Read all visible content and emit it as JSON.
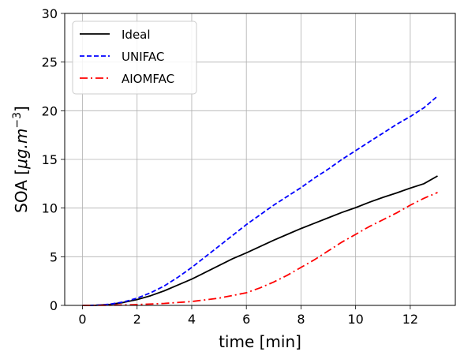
{
  "chart_data": {
    "type": "line",
    "xlabel": "time [min]",
    "ylabel": "SOA [μg.m⁻³]",
    "ylabel_parts": {
      "prefix": "SOA [",
      "unit": "μg.m",
      "exp": "−3",
      "suffix": "]"
    },
    "xlim": [
      -0.65,
      13.65
    ],
    "ylim": [
      0,
      30
    ],
    "xticks": [
      0,
      2,
      4,
      6,
      8,
      10,
      12
    ],
    "yticks": [
      0,
      5,
      10,
      15,
      20,
      25,
      30
    ],
    "grid": true,
    "legend_position": "top-left",
    "series": [
      {
        "name": "Ideal",
        "color": "#000000",
        "style": "solid",
        "x": [
          0,
          0.5,
          1,
          1.5,
          2,
          2.5,
          3,
          3.5,
          4,
          4.5,
          5,
          5.5,
          6,
          6.5,
          7,
          7.5,
          8,
          8.5,
          9,
          9.5,
          10,
          10.5,
          11,
          11.5,
          12,
          12.5,
          13
        ],
        "y": [
          0,
          0.02,
          0.1,
          0.3,
          0.6,
          1.0,
          1.5,
          2.1,
          2.7,
          3.4,
          4.1,
          4.8,
          5.4,
          6.05,
          6.7,
          7.3,
          7.9,
          8.45,
          9.0,
          9.55,
          10.05,
          10.6,
          11.1,
          11.55,
          12.05,
          12.5,
          13.3
        ]
      },
      {
        "name": "UNIFAC",
        "color": "#0000ff",
        "style": "dashed",
        "x": [
          0,
          0.5,
          1,
          1.5,
          2,
          2.5,
          3,
          3.5,
          4,
          4.5,
          5,
          5.5,
          6,
          6.5,
          7,
          7.5,
          8,
          8.5,
          9,
          9.5,
          10,
          10.5,
          11,
          11.5,
          12,
          12.5,
          13
        ],
        "y": [
          0,
          0.02,
          0.12,
          0.35,
          0.75,
          1.3,
          2.0,
          2.9,
          3.9,
          5.0,
          6.1,
          7.2,
          8.3,
          9.3,
          10.3,
          11.2,
          12.1,
          13.1,
          14.0,
          15.0,
          15.9,
          16.8,
          17.7,
          18.6,
          19.4,
          20.3,
          21.5
        ]
      },
      {
        "name": "AIOMFAC",
        "color": "#ff0000",
        "style": "dashdot",
        "x": [
          0,
          1,
          2,
          3,
          4,
          5,
          6,
          6.5,
          7,
          7.5,
          8,
          8.5,
          9,
          9.5,
          10,
          10.5,
          11,
          11.5,
          12,
          12.5,
          13
        ],
        "y": [
          0,
          0.02,
          0.08,
          0.2,
          0.4,
          0.75,
          1.3,
          1.8,
          2.4,
          3.1,
          3.9,
          4.7,
          5.6,
          6.5,
          7.3,
          8.1,
          8.8,
          9.5,
          10.3,
          11.0,
          11.6
        ]
      }
    ]
  }
}
